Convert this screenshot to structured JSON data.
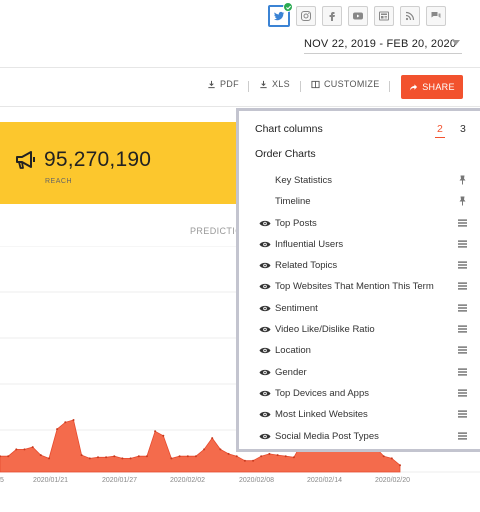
{
  "colors": {
    "accent": "#f2522e",
    "banner": "#fcc72d",
    "area": "#f46b4c",
    "twitter": "#3b83d4",
    "check": "#2aaa52"
  },
  "social": [
    {
      "name": "twitter-icon",
      "active": true
    },
    {
      "name": "instagram-icon"
    },
    {
      "name": "facebook-icon"
    },
    {
      "name": "youtube-icon"
    },
    {
      "name": "news-icon"
    },
    {
      "name": "rss-icon"
    },
    {
      "name": "forum-icon"
    }
  ],
  "date_range": "NOV 22, 2019 - FEB 20, 2020",
  "toolbar": {
    "pdf": "PDF",
    "xls": "XLS",
    "customize": "CUSTOMIZE",
    "share": "SHARE"
  },
  "reach": {
    "value": "95,270,190",
    "label": "REACH",
    "icon": "megaphone-icon"
  },
  "tab_label": "PREDICTIO",
  "chart_data": {
    "type": "area",
    "x_ticks": [
      "5",
      "2020/01/21",
      "2020/01/27",
      "2020/02/02",
      "2020/02/08",
      "2020/02/14",
      "2020/02/20"
    ],
    "values": [
      14,
      14,
      20,
      20,
      22,
      15,
      12,
      38,
      44,
      46,
      15,
      12,
      13,
      13,
      14,
      12,
      12,
      14,
      14,
      36,
      32,
      12,
      14,
      14,
      14,
      20,
      30,
      20,
      16,
      14,
      10,
      10,
      14,
      16,
      15,
      14,
      13,
      26,
      28,
      32,
      36,
      40,
      24,
      40,
      56,
      50,
      22,
      14,
      12,
      6
    ],
    "ylim": [
      0,
      200
    ],
    "grid": true
  },
  "panel": {
    "title": "Chart columns",
    "columns": [
      "2",
      "3"
    ],
    "selected_columns": "2",
    "order_title": "Order Charts",
    "items": [
      {
        "label": "Key Statistics",
        "pinned": true
      },
      {
        "label": "Timeline",
        "pinned": true
      },
      {
        "label": "Top Posts"
      },
      {
        "label": "Influential Users"
      },
      {
        "label": "Related Topics"
      },
      {
        "label": "Top Websites That Mention This Term"
      },
      {
        "label": "Sentiment"
      },
      {
        "label": "Video Like/Dislike Ratio"
      },
      {
        "label": "Location"
      },
      {
        "label": "Gender"
      },
      {
        "label": "Top Devices and Apps"
      },
      {
        "label": "Most Linked Websites"
      },
      {
        "label": "Social Media Post Types"
      }
    ]
  }
}
